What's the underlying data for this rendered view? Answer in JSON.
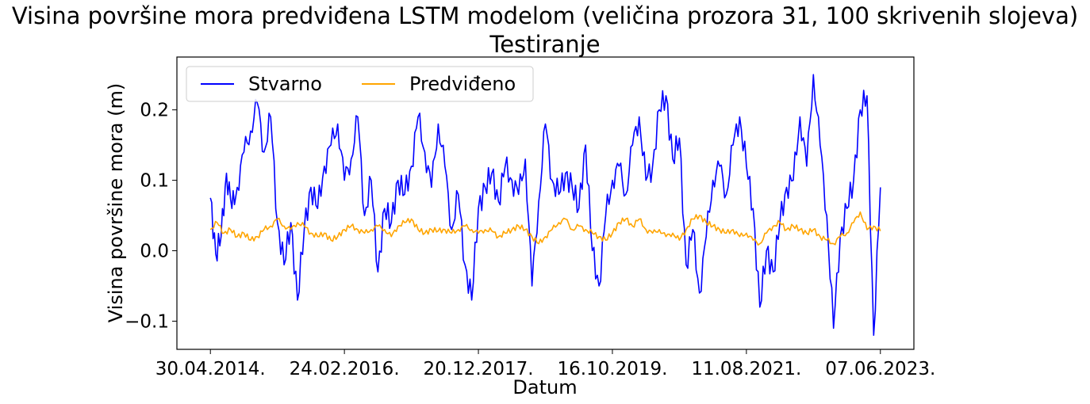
{
  "chart_data": {
    "type": "line",
    "title": "Visina površine mora predviđena LSTM modelom (veličina prozora 31, 100 skrivenih slojeva)",
    "subtitle": "Testiranje",
    "xlabel": "Datum",
    "ylabel": "Visina površine mora (m)",
    "x_ticks": [
      "30.04.2014.",
      "24.02.2016.",
      "20.12.2017.",
      "16.10.2019.",
      "11.08.2021.",
      "07.06.2023."
    ],
    "y_ticks": [
      "−0.1",
      "0.0",
      "0.1",
      "0.2"
    ],
    "y_tick_values": [
      -0.1,
      0.0,
      0.1,
      0.2
    ],
    "ylim": [
      -0.14,
      0.275
    ],
    "xlim": [
      -0.25,
      5.25
    ],
    "grid": false,
    "legend": "top-left",
    "series": [
      {
        "name": "Stvarno",
        "color": "#0000ff",
        "x": [
          0,
          0.04,
          0.08,
          0.12,
          0.16,
          0.2,
          0.25,
          0.3,
          0.35,
          0.4,
          0.45,
          0.5,
          0.55,
          0.6,
          0.65,
          0.7,
          0.75,
          0.8,
          0.85,
          0.9,
          0.95,
          1.0,
          1.05,
          1.1,
          1.15,
          1.2,
          1.25,
          1.3,
          1.35,
          1.4,
          1.45,
          1.5,
          1.55,
          1.6,
          1.65,
          1.7,
          1.75,
          1.8,
          1.85,
          1.9,
          1.95,
          2.0,
          2.05,
          2.1,
          2.15,
          2.2,
          2.25,
          2.3,
          2.35,
          2.4,
          2.45,
          2.5,
          2.55,
          2.6,
          2.65,
          2.7,
          2.75,
          2.8,
          2.85,
          2.9,
          2.95,
          3.0,
          3.05,
          3.1,
          3.15,
          3.2,
          3.25,
          3.3,
          3.35,
          3.4,
          3.45,
          3.5,
          3.55,
          3.6,
          3.65,
          3.7,
          3.75,
          3.8,
          3.85,
          3.9,
          3.95,
          4.0,
          4.05,
          4.1,
          4.15,
          4.2,
          4.25,
          4.3,
          4.35,
          4.4,
          4.45,
          4.5,
          4.55,
          4.6,
          4.65,
          4.7,
          4.75,
          4.8,
          4.85,
          4.9,
          4.95,
          5.0
        ],
        "values": [
          0.075,
          -0.005,
          0.02,
          0.11,
          0.06,
          0.09,
          0.14,
          0.17,
          0.21,
          0.14,
          0.19,
          0.04,
          -0.02,
          0.04,
          -0.07,
          0.03,
          0.09,
          0.06,
          0.12,
          0.15,
          0.18,
          0.1,
          0.13,
          0.19,
          0.05,
          0.1,
          -0.03,
          0.06,
          0.04,
          0.1,
          0.08,
          0.12,
          0.19,
          0.14,
          0.09,
          0.18,
          0.12,
          0.03,
          0.08,
          -0.02,
          -0.07,
          0.06,
          0.09,
          0.11,
          0.07,
          0.12,
          0.1,
          0.08,
          0.13,
          -0.05,
          0.07,
          0.18,
          0.1,
          0.08,
          0.11,
          0.09,
          0.06,
          0.15,
          0.0,
          -0.05,
          0.05,
          0.1,
          0.12,
          0.08,
          0.15,
          0.19,
          0.1,
          0.12,
          0.2,
          0.22,
          0.13,
          0.16,
          -0.02,
          0.03,
          -0.06,
          0.02,
          0.1,
          0.12,
          0.08,
          0.15,
          0.19,
          0.12,
          0.06,
          -0.08,
          0.0,
          -0.03,
          0.04,
          0.09,
          0.1,
          0.19,
          0.12,
          0.25,
          0.15,
          0.05,
          -0.11,
          0.02,
          0.06,
          0.1,
          0.2,
          0.22,
          -0.12,
          0.09
        ],
        "note_ignore": ""
      },
      {
        "name": "Predviđeno",
        "color": "#ffa500",
        "x": [
          0,
          0.05,
          0.1,
          0.15,
          0.2,
          0.25,
          0.3,
          0.35,
          0.4,
          0.45,
          0.5,
          0.55,
          0.6,
          0.65,
          0.7,
          0.75,
          0.8,
          0.85,
          0.9,
          0.95,
          1.0,
          1.05,
          1.1,
          1.15,
          1.2,
          1.25,
          1.3,
          1.35,
          1.4,
          1.45,
          1.5,
          1.55,
          1.6,
          1.65,
          1.7,
          1.75,
          1.8,
          1.85,
          1.9,
          1.95,
          2.0,
          2.05,
          2.1,
          2.15,
          2.2,
          2.25,
          2.3,
          2.35,
          2.4,
          2.45,
          2.5,
          2.55,
          2.6,
          2.65,
          2.7,
          2.75,
          2.8,
          2.85,
          2.9,
          2.95,
          3.0,
          3.05,
          3.1,
          3.15,
          3.2,
          3.25,
          3.3,
          3.35,
          3.4,
          3.45,
          3.5,
          3.55,
          3.6,
          3.65,
          3.7,
          3.75,
          3.8,
          3.85,
          3.9,
          3.95,
          4.0,
          4.05,
          4.1,
          4.15,
          4.2,
          4.25,
          4.3,
          4.35,
          4.4,
          4.45,
          4.5,
          4.55,
          4.6,
          4.65,
          4.7,
          4.75,
          4.8,
          4.85,
          4.9,
          4.95,
          5.0
        ],
        "values": [
          0.03,
          0.04,
          0.025,
          0.03,
          0.02,
          0.025,
          0.015,
          0.02,
          0.03,
          0.035,
          0.045,
          0.035,
          0.03,
          0.04,
          0.035,
          0.025,
          0.02,
          0.025,
          0.015,
          0.02,
          0.03,
          0.035,
          0.03,
          0.025,
          0.03,
          0.035,
          0.03,
          0.02,
          0.035,
          0.04,
          0.045,
          0.03,
          0.025,
          0.03,
          0.028,
          0.03,
          0.025,
          0.03,
          0.035,
          0.03,
          0.025,
          0.03,
          0.028,
          0.02,
          0.025,
          0.03,
          0.035,
          0.03,
          0.02,
          0.01,
          0.02,
          0.03,
          0.04,
          0.045,
          0.03,
          0.035,
          0.03,
          0.025,
          0.02,
          0.015,
          0.025,
          0.04,
          0.045,
          0.035,
          0.045,
          0.03,
          0.025,
          0.03,
          0.02,
          0.025,
          0.015,
          0.03,
          0.045,
          0.05,
          0.04,
          0.035,
          0.03,
          0.025,
          0.03,
          0.02,
          0.025,
          0.015,
          0.01,
          0.025,
          0.035,
          0.04,
          0.03,
          0.035,
          0.03,
          0.025,
          0.03,
          0.02,
          0.015,
          0.01,
          0.02,
          0.025,
          0.04,
          0.055,
          0.03,
          0.035,
          0.028
        ]
      }
    ]
  }
}
